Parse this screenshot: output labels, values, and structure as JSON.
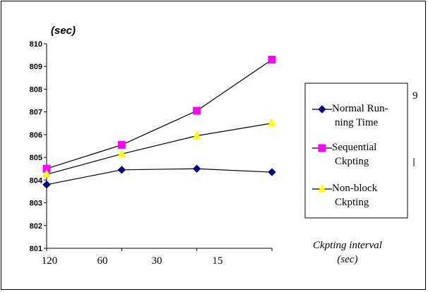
{
  "chart_data": {
    "type": "line",
    "title": "",
    "ylabel": "(sec)",
    "xlabel_lines": [
      "Ckpting interval",
      "(sec)"
    ],
    "categories": [
      "120",
      "60",
      "30",
      "15"
    ],
    "x_tick_labels": [
      "120",
      "60",
      "30",
      "15"
    ],
    "ylim": [
      801,
      810
    ],
    "y_ticks": [
      "801",
      "802",
      "803",
      "804",
      "805",
      "806",
      "807",
      "808",
      "809",
      "810"
    ],
    "grid": false,
    "legend_position": "right",
    "series": [
      {
        "name_lines": [
          "Normal Run-",
          "ning Time"
        ],
        "color": "#000080",
        "marker": "diamond",
        "values": [
          803.8,
          804.45,
          804.5,
          804.35
        ]
      },
      {
        "name_lines": [
          "Sequential",
          "Ckpting"
        ],
        "color": "#ff00ff",
        "marker": "square",
        "values": [
          804.5,
          805.55,
          807.05,
          809.3
        ]
      },
      {
        "name_lines": [
          "Non-block",
          "Ckpting"
        ],
        "color": "#ffff00",
        "marker": "triangle",
        "values": [
          804.25,
          805.15,
          805.95,
          806.5
        ]
      }
    ],
    "stray_text": "9"
  }
}
